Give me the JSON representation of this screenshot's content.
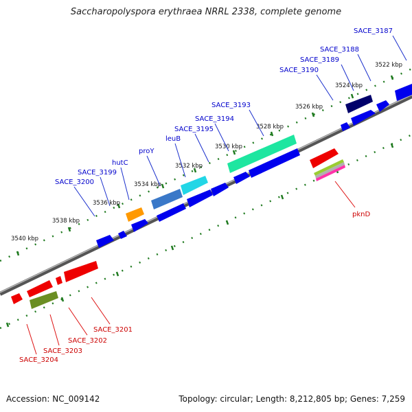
{
  "title": "Saccharopolyspora erythraea NRRL 2338, complete genome",
  "footer": {
    "accession": "Accession: NC_009142",
    "stats": "Topology: circular; Length: 8,212,805 bp; Genes: 7,259"
  },
  "colors": {
    "forward": "#0000ee",
    "reverse": "#ee0000",
    "backbone": "#777777",
    "ticks": "#1f7a1f",
    "label_forward": "#0000cc",
    "label_reverse": "#cc0000"
  },
  "kbp_labels": [
    "3522 kbp",
    "3524 kbp",
    "3526 kbp",
    "3528 kbp",
    "3530 kbp",
    "3532 kbp",
    "3534 kbp",
    "3536 kbp",
    "3538 kbp",
    "3540 kbp"
  ],
  "gene_labels_forward": [
    "SACE_3187",
    "SACE_3188",
    "SACE_3189",
    "SACE_3190",
    "SACE_3193",
    "SACE_3194",
    "SACE_3195",
    "leuB",
    "proY",
    "hutC",
    "SACE_3199",
    "SACE_3200"
  ],
  "gene_labels_reverse": [
    "pknD",
    "SACE_3201",
    "SACE_3202",
    "SACE_3203",
    "SACE_3204"
  ]
}
